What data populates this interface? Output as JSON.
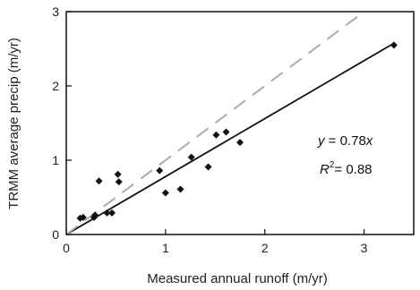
{
  "chart_data": {
    "type": "scatter",
    "title": "",
    "xlabel": "Measured annual runoff (m/yr)",
    "ylabel": "TRMM average precip (m/yr)",
    "xlim": [
      0,
      3.5
    ],
    "ylim": [
      0,
      3
    ],
    "x_ticks": [
      "0",
      "1",
      "2",
      "3"
    ],
    "y_ticks": [
      "0",
      "1",
      "2",
      "3"
    ],
    "grid": false,
    "legend": "none",
    "series": [
      {
        "marker": "diamond",
        "color": "#111111",
        "points": [
          {
            "x": 0.14,
            "y": 0.22
          },
          {
            "x": 0.17,
            "y": 0.23
          },
          {
            "x": 0.28,
            "y": 0.23
          },
          {
            "x": 0.29,
            "y": 0.26
          },
          {
            "x": 0.33,
            "y": 0.72
          },
          {
            "x": 0.41,
            "y": 0.29
          },
          {
            "x": 0.46,
            "y": 0.29
          },
          {
            "x": 0.52,
            "y": 0.81
          },
          {
            "x": 0.53,
            "y": 0.71
          },
          {
            "x": 0.94,
            "y": 0.86
          },
          {
            "x": 1.0,
            "y": 0.56
          },
          {
            "x": 1.15,
            "y": 0.61
          },
          {
            "x": 1.26,
            "y": 1.04
          },
          {
            "x": 1.43,
            "y": 0.91
          },
          {
            "x": 1.51,
            "y": 1.34
          },
          {
            "x": 1.61,
            "y": 1.38
          },
          {
            "x": 1.75,
            "y": 1.24
          },
          {
            "x": 3.3,
            "y": 2.55
          }
        ]
      }
    ],
    "lines": [
      {
        "kind": "fit",
        "style": "solid",
        "color": "#111111",
        "slope": 0.78,
        "x_range": [
          0,
          3.3
        ]
      },
      {
        "kind": "one-to-one",
        "style": "dashed",
        "color": "#aaaaaa",
        "slope": 1,
        "x_range": [
          0,
          3.0
        ]
      }
    ],
    "annotations": {
      "equation_y": "y",
      "equation_eq": " = 0.78",
      "equation_x": "x",
      "r2_r": "R",
      "r2_sup": "2",
      "r2_val": "= 0.88"
    }
  }
}
